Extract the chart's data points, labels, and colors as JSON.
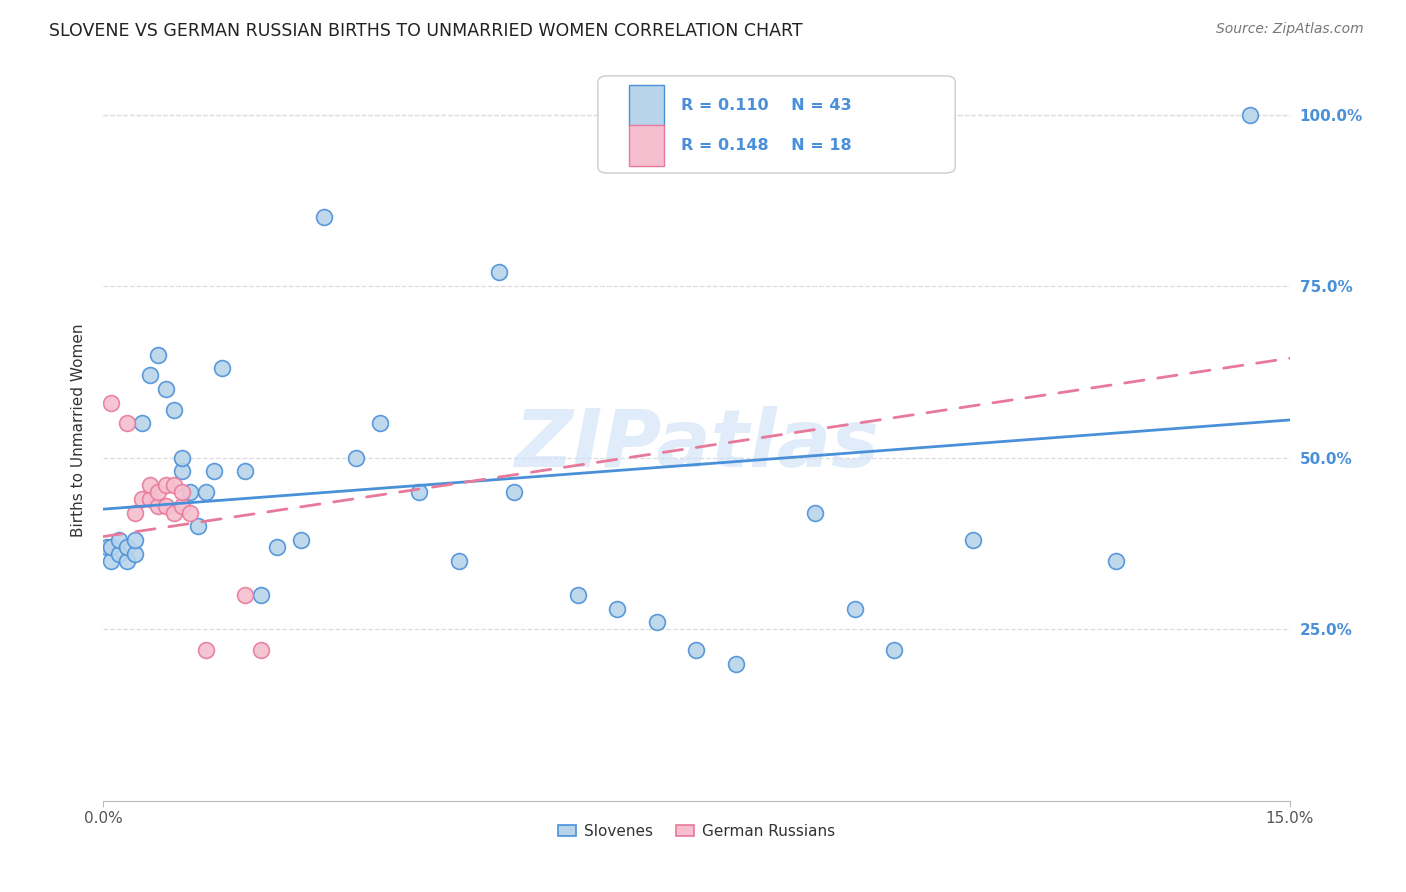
{
  "title": "SLOVENE VS GERMAN RUSSIAN BIRTHS TO UNMARRIED WOMEN CORRELATION CHART",
  "source": "Source: ZipAtlas.com",
  "ylabel": "Births to Unmarried Women",
  "legend_labels": [
    "Slovenes",
    "German Russians"
  ],
  "legend_r": [
    "0.110",
    "0.148"
  ],
  "legend_n": [
    "43",
    "18"
  ],
  "slovene_color": "#b8d4ea",
  "german_russian_color": "#f5bfcf",
  "slovene_line_color": "#4a90d9",
  "german_russian_line_color": "#e8799a",
  "slovene_x": [
    0.0005,
    0.001,
    0.001,
    0.002,
    0.002,
    0.003,
    0.003,
    0.004,
    0.004,
    0.005,
    0.006,
    0.007,
    0.008,
    0.009,
    0.01,
    0.01,
    0.011,
    0.012,
    0.013,
    0.014,
    0.015,
    0.018,
    0.02,
    0.022,
    0.025,
    0.028,
    0.032,
    0.035,
    0.04,
    0.045,
    0.05,
    0.052,
    0.06,
    0.065,
    0.07,
    0.075,
    0.08,
    0.09,
    0.095,
    0.1,
    0.11,
    0.128,
    0.145
  ],
  "slovene_y": [
    0.37,
    0.35,
    0.37,
    0.36,
    0.38,
    0.35,
    0.37,
    0.36,
    0.38,
    0.55,
    0.62,
    0.65,
    0.6,
    0.57,
    0.48,
    0.5,
    0.45,
    0.4,
    0.45,
    0.48,
    0.63,
    0.48,
    0.3,
    0.37,
    0.38,
    0.85,
    0.5,
    0.55,
    0.45,
    0.35,
    0.77,
    0.45,
    0.3,
    0.28,
    0.26,
    0.22,
    0.2,
    0.42,
    0.28,
    0.22,
    0.38,
    0.35,
    1.0
  ],
  "german_russian_x": [
    0.001,
    0.003,
    0.004,
    0.005,
    0.006,
    0.006,
    0.007,
    0.007,
    0.008,
    0.008,
    0.009,
    0.009,
    0.01,
    0.01,
    0.011,
    0.013,
    0.018,
    0.02
  ],
  "german_russian_y": [
    0.58,
    0.55,
    0.42,
    0.44,
    0.44,
    0.46,
    0.43,
    0.45,
    0.43,
    0.46,
    0.42,
    0.46,
    0.43,
    0.45,
    0.42,
    0.22,
    0.3,
    0.22
  ],
  "slovene_trend_x": [
    0.0,
    0.15
  ],
  "slovene_trend_y": [
    0.425,
    0.555
  ],
  "german_trend_x": [
    0.0,
    0.15
  ],
  "german_trend_y": [
    0.385,
    0.645
  ],
  "xmin": 0.0,
  "xmax": 0.15,
  "ymin": 0.0,
  "ymax": 1.08,
  "yticks": [
    0.25,
    0.5,
    0.75,
    1.0
  ],
  "ytick_labels": [
    "25.0%",
    "50.0%",
    "75.0%",
    "100.0%"
  ],
  "xtick_left_label": "0.0%",
  "xtick_right_label": "15.0%",
  "watermark": "ZIPatlas",
  "background_color": "#ffffff",
  "grid_color": "#dddddd"
}
